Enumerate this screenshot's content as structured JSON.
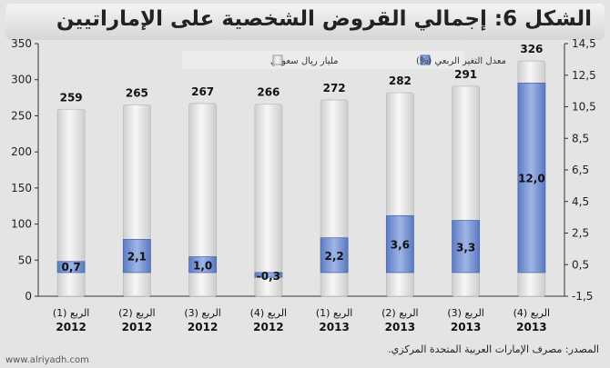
{
  "title": "الشكل 6: إجمالي القروض الشخصية على الإماراتيين",
  "source": "المصدر: مصرف الإمارات العربية المتحدة المركزي.",
  "watermark": "www.alriyadh.com",
  "colors": {
    "total_bar": "#e9e9e9",
    "change_bar": "#7f9ad4",
    "change_bar_highlight": "#5f7fcf",
    "background": "#e4e4e4"
  },
  "chart_data": {
    "type": "bar",
    "categories": [
      {
        "label": "الربع (1)",
        "year": "2012"
      },
      {
        "label": "الربع (2)",
        "year": "2012"
      },
      {
        "label": "الربع (3)",
        "year": "2012"
      },
      {
        "label": "الربع (4)",
        "year": "2012"
      },
      {
        "label": "الربع (1)",
        "year": "2013"
      },
      {
        "label": "الربع (2)",
        "year": "2013"
      },
      {
        "label": "الربع (3)",
        "year": "2013"
      },
      {
        "label": "الربع (4)",
        "year": "2013"
      }
    ],
    "series": [
      {
        "name": "مليار ريال سعودي",
        "axis": "left",
        "values": [
          259,
          265,
          267,
          266,
          272,
          282,
          291,
          326
        ],
        "labels": [
          "259",
          "265",
          "267",
          "266",
          "272",
          "282",
          "291",
          "326"
        ]
      },
      {
        "name": "معدل التغير الربعي (%)",
        "axis": "right",
        "values": [
          0.7,
          2.1,
          1.0,
          -0.3,
          2.2,
          3.6,
          3.3,
          12.0
        ],
        "labels": [
          "0,7",
          "2,1",
          "1,0",
          "-0,3",
          "2,2",
          "3,6",
          "3,3",
          "12,0"
        ]
      }
    ],
    "y_left": {
      "min": 0,
      "max": 350,
      "ticks": [
        "0",
        "50",
        "100",
        "150",
        "200",
        "250",
        "300",
        "350"
      ]
    },
    "y_right": {
      "min": -1.5,
      "max": 14.5,
      "ticks": [
        "-1,5",
        "0,5",
        "2,5",
        "4,5",
        "6,5",
        "8,5",
        "10,5",
        "12,5",
        "14,5"
      ]
    },
    "grid": false,
    "legend_position": "top"
  }
}
